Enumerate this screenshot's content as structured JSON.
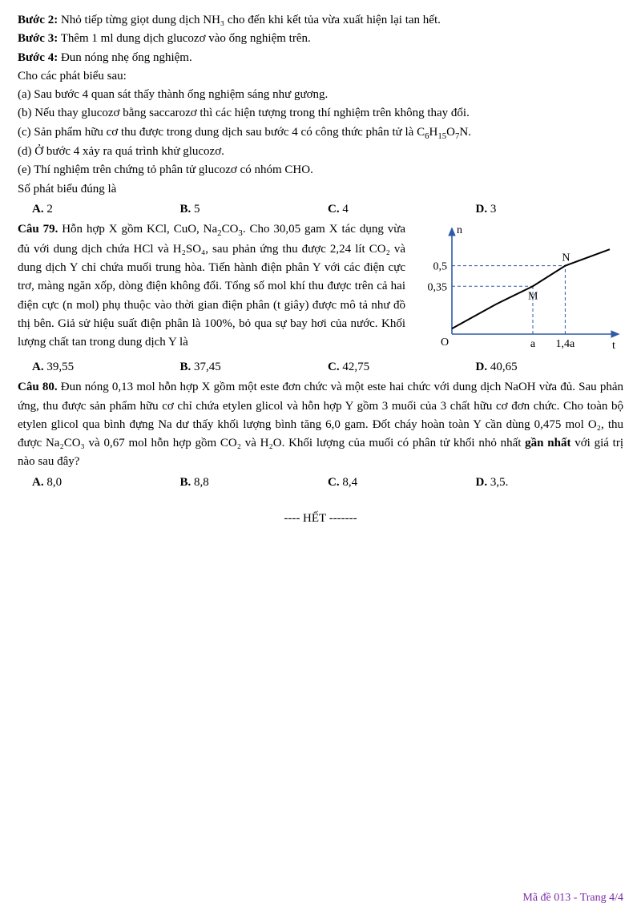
{
  "steps": {
    "s2_label": "Bước 2:",
    "s2_text": " Nhỏ tiếp từng giọt dung dịch NH₃ cho đến khi kết tủa vừa xuất hiện lại tan hết.",
    "s3_label": "Bước 3:",
    "s3_text": " Thêm 1 ml dung dịch glucozơ vào ống nghiệm trên.",
    "s4_label": "Bước 4:",
    "s4_text": " Đun nóng nhẹ ống nghiệm."
  },
  "intro": "Cho các phát biểu sau:",
  "stmts": {
    "a": "(a) Sau bước 4 quan sát thấy thành ống nghiệm sáng như gương.",
    "b": "(b) Nếu thay glucozơ bằng saccarozơ thì các hiện tượng trong thí nghiệm trên không thay đổi.",
    "c_pre": "(c) Sản phẩm hữu cơ thu được trong dung dịch sau bước 4 có công thức phân tử là C",
    "c_sub1": "6",
    "c_mid1": "H",
    "c_sub2": "15",
    "c_mid2": "O",
    "c_sub3": "7",
    "c_end": "N.",
    "d": "(d) Ở bước 4 xảy ra quá trình khử glucozơ.",
    "e": "(e) Thí nghiệm trên chứng tỏ phân tử glucozơ có nhóm CHO."
  },
  "q78_prompt": "Số phát biểu đúng là",
  "q78_opts": {
    "A": "2",
    "B": "5",
    "C": "4",
    "D": "3"
  },
  "q79": {
    "label": "Câu 79.",
    "text_pre": " Hỗn hợp X gồm KCl, CuO, Na",
    "sub1": "2",
    "mid1": "CO",
    "sub2": "3",
    "text_body": ". Cho 30,05 gam X tác dụng vừa đủ với dung dịch chứa HCl và H₂SO₄, sau phản ứng thu được 2,24 lít CO₂ và dung dịch Y chỉ chứa muối trung hòa. Tiến hành điện phân Y với các điện cực trơ, màng ngăn xốp, dòng điện không đổi. Tổng số mol khí thu được trên cả hai điện cực (n mol) phụ thuộc vào thời gian điện phân (t giây) được mô tả như đồ thị bên. Giả sử hiệu suất điện phân là 100%, bỏ qua sự bay hơi của nước. Khối lượng chất tan trong dung dịch Y là",
    "opts": {
      "A": "39,55",
      "B": "37,45",
      "C": "42,75",
      "D": "40,65"
    }
  },
  "chart": {
    "axis_color": "#2e5aa8",
    "dash_color": "#2e5aa8",
    "line_color": "#000000",
    "y_label": "n",
    "x_label": "t",
    "y_ticks": [
      {
        "val": 0.35,
        "label": "0,35"
      },
      {
        "val": 0.5,
        "label": "0,5"
      }
    ],
    "x_ticks": [
      {
        "val": 1.0,
        "label": "a"
      },
      {
        "val": 1.4,
        "label": "1,4a"
      }
    ],
    "origin_label": "O",
    "pt_M": "M",
    "pt_N": "N",
    "plot": {
      "xmin": 0,
      "xmax": 2.0,
      "ymin": 0,
      "ymax": 0.75,
      "points": [
        {
          "x": 0,
          "y": 0.04
        },
        {
          "x": 0.55,
          "y": 0.22
        },
        {
          "x": 1.0,
          "y": 0.35
        },
        {
          "x": 1.4,
          "y": 0.5
        },
        {
          "x": 1.95,
          "y": 0.62
        }
      ],
      "m_idx": 2,
      "n_idx": 3
    }
  },
  "q80": {
    "label": "Câu 80.",
    "text": " Đun nóng 0,13 mol hỗn hợp X gồm một este đơn chức và một este hai chức với dung dịch NaOH vừa đủ. Sau phản ứng, thu được sản phẩm hữu cơ chỉ chứa etylen glicol và hỗn hợp Y gồm 3 muối của 3 chất hữu cơ đơn chức. Cho toàn bộ etylen glicol qua bình đựng Na dư thấy khối lượng bình tăng 6,0 gam. Đốt cháy hoàn toàn Y cần dùng 0,475 mol O₂, thu được Na₂CO₃ và 0,67 mol hỗn hợp gồm CO₂ và H₂O. Khối lượng của muối có phân tử khối nhỏ nhất ",
    "bold_part": "gần nhất",
    "text_after": " với giá trị nào sau đây?",
    "opts": {
      "A": "8,0",
      "B": "8,8",
      "C": "8,4",
      "D": "3,5."
    }
  },
  "end_text": "---- HẾT -------",
  "footer": "Mã đề 013 - Trang 4/4"
}
